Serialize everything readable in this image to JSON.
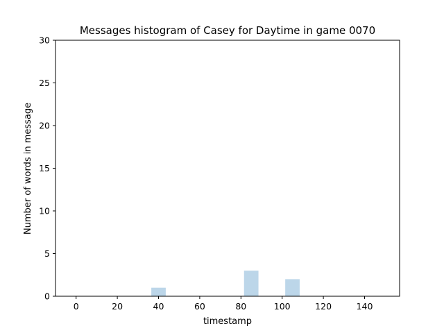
{
  "chart_data": {
    "type": "bar",
    "title": "Messages histogram of Casey for Daytime in game 0070",
    "xlabel": "timestamp",
    "ylabel": "Number of words in message",
    "xlim": [
      -10,
      157
    ],
    "ylim": [
      0,
      30
    ],
    "xticks": [
      0,
      20,
      40,
      60,
      80,
      100,
      120,
      140
    ],
    "yticks": [
      0,
      5,
      10,
      15,
      20,
      25,
      30
    ],
    "bin_width": 7,
    "bars": [
      {
        "x": 40,
        "value": 1
      },
      {
        "x": 85,
        "value": 3
      },
      {
        "x": 105,
        "value": 2
      }
    ],
    "bar_color": "#bcd6e9",
    "grid": false
  }
}
